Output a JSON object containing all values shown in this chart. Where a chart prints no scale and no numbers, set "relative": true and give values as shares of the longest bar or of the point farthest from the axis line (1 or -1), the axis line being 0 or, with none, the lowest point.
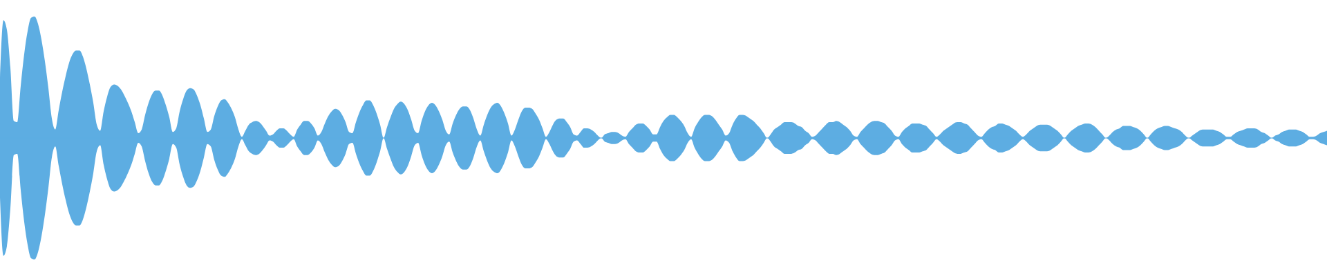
{
  "chart_data": {
    "type": "area",
    "relative": true,
    "categories": [
      null,
      null,
      null,
      null,
      null,
      null,
      null,
      null,
      null,
      null,
      null,
      null,
      null,
      null,
      null,
      null,
      null,
      null,
      null,
      null,
      null,
      null,
      null,
      null,
      null,
      null,
      null,
      null,
      null,
      null,
      null,
      null,
      null,
      null,
      null,
      null,
      null,
      null,
      null,
      null,
      null,
      null,
      null,
      null,
      null,
      null,
      null,
      null,
      null,
      null,
      null,
      null,
      null,
      null,
      null,
      null,
      null,
      null,
      null,
      null,
      null,
      null,
      null,
      null,
      null,
      null,
      null,
      null,
      null,
      null,
      null,
      null,
      null,
      null,
      null,
      null,
      null,
      null,
      null,
      null,
      null,
      null,
      null,
      null,
      null,
      null,
      null,
      null,
      null,
      null,
      null,
      null,
      null,
      null,
      null,
      null,
      null,
      null,
      null,
      null,
      null,
      null,
      null,
      null,
      null,
      null,
      null,
      null,
      null,
      null,
      null,
      null,
      null,
      null,
      null,
      null,
      null,
      null,
      null,
      null,
      null,
      null,
      null,
      null,
      null,
      null,
      null,
      null,
      null,
      null,
      null,
      null,
      null,
      null,
      null,
      null,
      null,
      null,
      null,
      null,
      null,
      null,
      null,
      null,
      null,
      null,
      null,
      null,
      null,
      null,
      null,
      null,
      null,
      null,
      null,
      null,
      null,
      null,
      null,
      null,
      null,
      null,
      null,
      null,
      null,
      null,
      null,
      null,
      null,
      null,
      null,
      null,
      null,
      null,
      null,
      null,
      null,
      null,
      null,
      null,
      null,
      null,
      null,
      null,
      null,
      null,
      null,
      null,
      null,
      null,
      null,
      null,
      null,
      null,
      null,
      null,
      null,
      null,
      null,
      null,
      null,
      null,
      null,
      null,
      null,
      null,
      null,
      null,
      null,
      null,
      null,
      null,
      null,
      null,
      null,
      null,
      null,
      null,
      null,
      null,
      null,
      null,
      null,
      null,
      null,
      null,
      null,
      null,
      null,
      null,
      null,
      null,
      null,
      null,
      null,
      null,
      null,
      null,
      null,
      null,
      null,
      null,
      null,
      null,
      null,
      null,
      null,
      null,
      null,
      null,
      null,
      null,
      null,
      null,
      null,
      null,
      null,
      null,
      null,
      null,
      null,
      null,
      null,
      null,
      null,
      null,
      null,
      null,
      null,
      null,
      null,
      null,
      null,
      null,
      null,
      null,
      null,
      null,
      null,
      null,
      null,
      null,
      null,
      null,
      null,
      null,
      null,
      null,
      null,
      null,
      null,
      null,
      null,
      null,
      null,
      null,
      null,
      null,
      null,
      null,
      null,
      null,
      null,
      null,
      null,
      null,
      null,
      null,
      null,
      null,
      null,
      null,
      null,
      null,
      null,
      null,
      null,
      null,
      null,
      null,
      null,
      null,
      null,
      null,
      null,
      null,
      null,
      null,
      null,
      null,
      null,
      null,
      null,
      null,
      null,
      null,
      null,
      null,
      null,
      null,
      null,
      null,
      null,
      null,
      null,
      null,
      null,
      null,
      null,
      null,
      null,
      null,
      null,
      null,
      null,
      null,
      null,
      null,
      null,
      null,
      null,
      null,
      null,
      null,
      null,
      null,
      null,
      null,
      null,
      null,
      null,
      null,
      null,
      null,
      null,
      null,
      null,
      null,
      null,
      null,
      null,
      null,
      null,
      null,
      null
    ],
    "series": [
      {
        "color": "#5dade2",
        "values": [
          0.49,
          0.97,
          0.89,
          0.58,
          0.14,
          0.13,
          0.43,
          0.69,
          0.88,
          0.99,
          1.0,
          0.94,
          0.81,
          0.63,
          0.41,
          0.16,
          0.07,
          0.23,
          0.38,
          0.51,
          0.62,
          0.69,
          0.72,
          0.72,
          0.67,
          0.57,
          0.44,
          0.29,
          0.11,
          0.06,
          0.22,
          0.34,
          0.42,
          0.44,
          0.43,
          0.4,
          0.35,
          0.29,
          0.22,
          0.13,
          0.04,
          0.07,
          0.19,
          0.29,
          0.36,
          0.39,
          0.39,
          0.35,
          0.27,
          0.17,
          0.05,
          0.08,
          0.22,
          0.32,
          0.39,
          0.41,
          0.4,
          0.35,
          0.27,
          0.16,
          0.05,
          0.07,
          0.18,
          0.26,
          0.31,
          0.32,
          0.29,
          0.24,
          0.17,
          0.07,
          0.01,
          0.06,
          0.11,
          0.13,
          0.14,
          0.13,
          0.1,
          0.06,
          0.02,
          0.03,
          0.06,
          0.08,
          0.08,
          0.06,
          0.03,
          0.01,
          0.07,
          0.11,
          0.14,
          0.14,
          0.12,
          0.08,
          0.02,
          0.05,
          0.12,
          0.18,
          0.22,
          0.24,
          0.23,
          0.19,
          0.13,
          0.05,
          0.04,
          0.13,
          0.21,
          0.27,
          0.31,
          0.31,
          0.27,
          0.2,
          0.11,
          0,
          0.09,
          0.17,
          0.24,
          0.28,
          0.3,
          0.28,
          0.23,
          0.15,
          0.06,
          0.04,
          0.14,
          0.22,
          0.27,
          0.29,
          0.27,
          0.22,
          0.15,
          0.06,
          0.03,
          0.12,
          0.19,
          0.24,
          0.26,
          0.26,
          0.23,
          0.16,
          0.07,
          0.02,
          0.11,
          0.19,
          0.25,
          0.28,
          0.29,
          0.26,
          0.2,
          0.12,
          0.02,
          0.07,
          0.15,
          0.22,
          0.25,
          0.25,
          0.24,
          0.2,
          0.15,
          0.08,
          0.01,
          0.05,
          0.11,
          0.15,
          0.16,
          0.16,
          0.13,
          0.09,
          0.03,
          0.02,
          0.05,
          0.08,
          0.08,
          0.07,
          0.05,
          0.02,
          0,
          0.03,
          0.04,
          0.05,
          0.05,
          0.04,
          0.02,
          0.01,
          0.05,
          0.08,
          0.11,
          0.12,
          0.12,
          0.1,
          0.07,
          0.03,
          0.03,
          0.09,
          0.14,
          0.17,
          0.19,
          0.19,
          0.17,
          0.14,
          0.1,
          0.04,
          0.01,
          0.08,
          0.13,
          0.17,
          0.19,
          0.19,
          0.18,
          0.15,
          0.11,
          0.07,
          0.02,
          0.04,
          0.11,
          0.16,
          0.19,
          0.19,
          0.18,
          0.16,
          0.14,
          0.11,
          0.08,
          0.04,
          0,
          0.03,
          0.07,
          0.09,
          0.11,
          0.13,
          0.13,
          0.13,
          0.12,
          0.1,
          0.09,
          0.06,
          0.04,
          0.01,
          0.02,
          0.05,
          0.08,
          0.11,
          0.13,
          0.13,
          0.14,
          0.13,
          0.11,
          0.09,
          0.06,
          0.02,
          0.01,
          0.05,
          0.08,
          0.11,
          0.13,
          0.14,
          0.14,
          0.13,
          0.12,
          0.09,
          0.06,
          0.02,
          0.01,
          0.05,
          0.08,
          0.1,
          0.12,
          0.12,
          0.12,
          0.11,
          0.1,
          0.07,
          0.04,
          0.01,
          0.03,
          0.06,
          0.08,
          0.1,
          0.12,
          0.13,
          0.13,
          0.12,
          0.11,
          0.08,
          0.05,
          0.02,
          0.01,
          0.04,
          0.07,
          0.09,
          0.1,
          0.12,
          0.12,
          0.11,
          0.1,
          0.08,
          0.06,
          0.03,
          0.01,
          0.03,
          0.06,
          0.08,
          0.1,
          0.11,
          0.11,
          0.11,
          0.1,
          0.08,
          0.06,
          0.03,
          0,
          0.03,
          0.06,
          0.08,
          0.1,
          0.11,
          0.12,
          0.12,
          0.11,
          0.09,
          0.06,
          0.03,
          0,
          0.02,
          0.05,
          0.07,
          0.08,
          0.1,
          0.1,
          0.1,
          0.09,
          0.08,
          0.06,
          0.03,
          0,
          0.03,
          0.06,
          0.08,
          0.09,
          0.1,
          0.1,
          0.09,
          0.08,
          0.07,
          0.05,
          0.02,
          0,
          0.02,
          0.04,
          0.06,
          0.07,
          0.07,
          0.07,
          0.07,
          0.06,
          0.05,
          0.03,
          0.01,
          0.01,
          0.03,
          0.05,
          0.06,
          0.07,
          0.08,
          0.08,
          0.08,
          0.07,
          0.05,
          0.04,
          0.02,
          0,
          0.02,
          0.03,
          0.05,
          0.06,
          0.07,
          0.07,
          0.07,
          0.06,
          0.05,
          0.03,
          0.01,
          0.01,
          0.02,
          0.04,
          0.05,
          0.06
        ]
      },
      {
        "color": "#5dade2",
        "values": [
          -0.49,
          -0.97,
          -0.89,
          -0.58,
          -0.14,
          -0.13,
          -0.43,
          -0.69,
          -0.88,
          -0.99,
          -1.0,
          -0.94,
          -0.81,
          -0.63,
          -0.41,
          -0.16,
          -0.07,
          -0.23,
          -0.38,
          -0.51,
          -0.62,
          -0.69,
          -0.72,
          -0.72,
          -0.67,
          -0.57,
          -0.44,
          -0.29,
          -0.11,
          -0.06,
          -0.22,
          -0.34,
          -0.42,
          -0.44,
          -0.43,
          -0.4,
          -0.35,
          -0.29,
          -0.22,
          -0.13,
          -0.04,
          -0.07,
          -0.19,
          -0.29,
          -0.36,
          -0.39,
          -0.39,
          -0.35,
          -0.27,
          -0.17,
          -0.05,
          -0.08,
          -0.22,
          -0.32,
          -0.39,
          -0.41,
          -0.4,
          -0.35,
          -0.27,
          -0.16,
          -0.05,
          -0.07,
          -0.18,
          -0.26,
          -0.31,
          -0.32,
          -0.29,
          -0.24,
          -0.17,
          -0.07,
          -0.01,
          -0.06,
          -0.11,
          -0.13,
          -0.14,
          -0.13,
          -0.1,
          -0.06,
          -0.02,
          -0.03,
          -0.06,
          -0.08,
          -0.08,
          -0.06,
          -0.03,
          -0.01,
          -0.07,
          -0.11,
          -0.14,
          -0.14,
          -0.12,
          -0.08,
          -0.02,
          -0.05,
          -0.12,
          -0.18,
          -0.22,
          -0.24,
          -0.23,
          -0.19,
          -0.13,
          -0.05,
          -0.04,
          -0.13,
          -0.21,
          -0.27,
          -0.31,
          -0.31,
          -0.27,
          -0.2,
          -0.11,
          0,
          -0.09,
          -0.17,
          -0.24,
          -0.28,
          -0.3,
          -0.28,
          -0.23,
          -0.15,
          -0.06,
          -0.04,
          -0.14,
          -0.22,
          -0.27,
          -0.29,
          -0.27,
          -0.22,
          -0.15,
          -0.06,
          -0.03,
          -0.12,
          -0.19,
          -0.24,
          -0.26,
          -0.26,
          -0.23,
          -0.16,
          -0.07,
          -0.02,
          -0.11,
          -0.19,
          -0.25,
          -0.28,
          -0.29,
          -0.26,
          -0.2,
          -0.12,
          -0.02,
          -0.07,
          -0.15,
          -0.22,
          -0.25,
          -0.25,
          -0.24,
          -0.2,
          -0.15,
          -0.08,
          -0.01,
          -0.05,
          -0.11,
          -0.15,
          -0.16,
          -0.16,
          -0.13,
          -0.09,
          -0.03,
          -0.02,
          -0.05,
          -0.08,
          -0.08,
          -0.07,
          -0.05,
          -0.02,
          0,
          -0.03,
          -0.04,
          -0.05,
          -0.05,
          -0.04,
          -0.02,
          -0.01,
          -0.05,
          -0.08,
          -0.11,
          -0.12,
          -0.12,
          -0.1,
          -0.07,
          -0.03,
          -0.03,
          -0.09,
          -0.14,
          -0.17,
          -0.19,
          -0.19,
          -0.17,
          -0.14,
          -0.1,
          -0.04,
          -0.01,
          -0.08,
          -0.13,
          -0.17,
          -0.19,
          -0.19,
          -0.18,
          -0.15,
          -0.11,
          -0.07,
          -0.02,
          -0.04,
          -0.11,
          -0.16,
          -0.19,
          -0.19,
          -0.18,
          -0.16,
          -0.14,
          -0.11,
          -0.08,
          -0.04,
          0,
          -0.03,
          -0.07,
          -0.09,
          -0.11,
          -0.13,
          -0.13,
          -0.13,
          -0.12,
          -0.1,
          -0.09,
          -0.06,
          -0.04,
          -0.01,
          -0.02,
          -0.05,
          -0.08,
          -0.11,
          -0.13,
          -0.13,
          -0.14,
          -0.13,
          -0.11,
          -0.09,
          -0.06,
          -0.02,
          -0.01,
          -0.05,
          -0.08,
          -0.11,
          -0.13,
          -0.14,
          -0.14,
          -0.13,
          -0.12,
          -0.09,
          -0.06,
          -0.02,
          -0.01,
          -0.05,
          -0.08,
          -0.1,
          -0.12,
          -0.12,
          -0.12,
          -0.11,
          -0.1,
          -0.07,
          -0.04,
          -0.01,
          -0.03,
          -0.06,
          -0.08,
          -0.1,
          -0.12,
          -0.13,
          -0.13,
          -0.12,
          -0.11,
          -0.08,
          -0.05,
          -0.02,
          -0.01,
          -0.04,
          -0.07,
          -0.09,
          -0.1,
          -0.12,
          -0.12,
          -0.11,
          -0.1,
          -0.08,
          -0.06,
          -0.03,
          -0.01,
          -0.03,
          -0.06,
          -0.08,
          -0.1,
          -0.11,
          -0.11,
          -0.11,
          -0.1,
          -0.08,
          -0.06,
          -0.03,
          0,
          -0.03,
          -0.06,
          -0.08,
          -0.1,
          -0.11,
          -0.12,
          -0.12,
          -0.11,
          -0.09,
          -0.06,
          -0.03,
          0,
          -0.02,
          -0.05,
          -0.07,
          -0.08,
          -0.1,
          -0.1,
          -0.1,
          -0.09,
          -0.08,
          -0.06,
          -0.03,
          0,
          -0.03,
          -0.06,
          -0.08,
          -0.09,
          -0.1,
          -0.1,
          -0.09,
          -0.08,
          -0.07,
          -0.05,
          -0.02,
          0,
          -0.02,
          -0.04,
          -0.06,
          -0.07,
          -0.07,
          -0.07,
          -0.07,
          -0.06,
          -0.05,
          -0.03,
          -0.01,
          -0.01,
          -0.03,
          -0.05,
          -0.06,
          -0.07,
          -0.08,
          -0.08,
          -0.08,
          -0.07,
          -0.05,
          -0.04,
          -0.02,
          0,
          -0.02,
          -0.03,
          -0.05,
          -0.06,
          -0.07,
          -0.07,
          -0.07,
          -0.06,
          -0.05,
          -0.03,
          -0.01,
          -0.01,
          -0.02,
          -0.04,
          -0.05,
          -0.06
        ]
      }
    ],
    "ref_lines": [
      {
        "axis": "y",
        "value": 0,
        "color": "#5dade2"
      }
    ]
  }
}
